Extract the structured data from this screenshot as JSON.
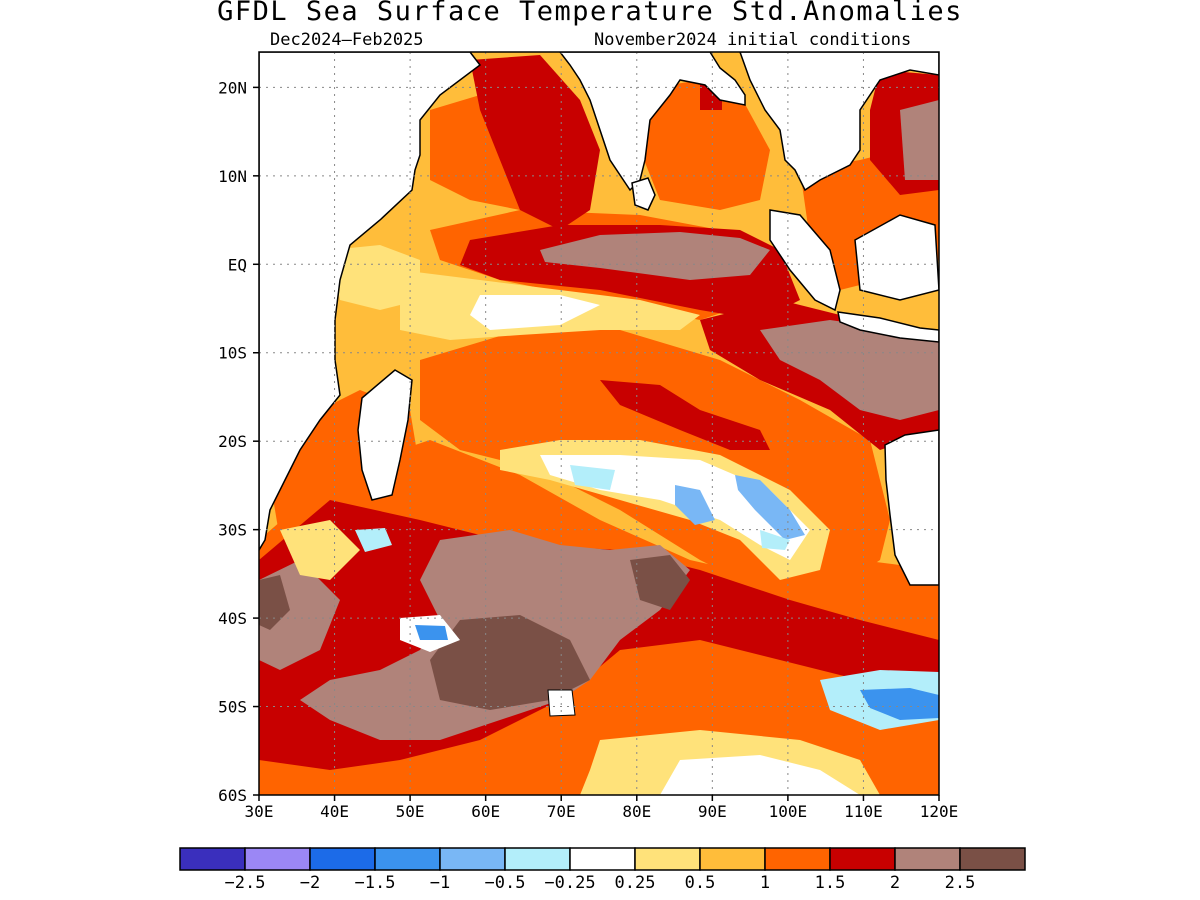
{
  "title": "GFDL Sea Surface Temperature Std.Anomalies",
  "subtitle_left": "Dec2024–Feb2025",
  "subtitle_right": "November2024 initial conditions",
  "map": {
    "lon_range": [
      30,
      120
    ],
    "lat_range": [
      -60,
      24
    ],
    "lon_ticks": [
      "30E",
      "40E",
      "50E",
      "60E",
      "70E",
      "80E",
      "90E",
      "100E",
      "110E",
      "120E"
    ],
    "lat_ticks": [
      "20N",
      "10N",
      "EQ",
      "10S",
      "20S",
      "30S",
      "40S",
      "50S",
      "60S"
    ],
    "grid": true,
    "land_color": "#ffffff",
    "coastline_color": "#000000"
  },
  "colorbar": {
    "colors": [
      "#3a2fbd",
      "#9b87f5",
      "#1c6be8",
      "#3b93ee",
      "#79b7f5",
      "#b3eefa",
      "#ffffff",
      "#ffe27a",
      "#ffbd3a",
      "#ff6400",
      "#c80000",
      "#b0837a",
      "#7a5046"
    ],
    "labels": [
      "−2.5",
      "−2",
      "−1.5",
      "−1",
      "−0.5",
      "−0.25",
      "0.25",
      "0.5",
      "1",
      "1.5",
      "2",
      "2.5"
    ]
  }
}
